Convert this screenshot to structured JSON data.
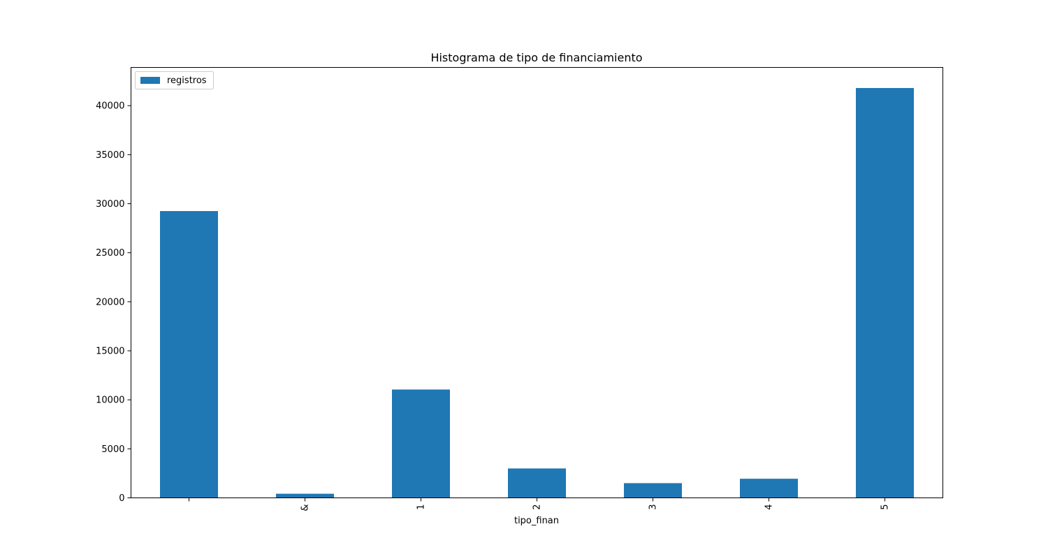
{
  "chart_data": {
    "type": "bar",
    "title": "Histograma de tipo de financiamiento",
    "xlabel": "tipo_finan",
    "ylabel": "",
    "categories": [
      "",
      "&",
      "1",
      "2",
      "3",
      "4",
      "5"
    ],
    "series": [
      {
        "name": "registros",
        "color": "#1f77b4",
        "values": [
          29250,
          420,
          11050,
          3000,
          1500,
          1950,
          41800
        ]
      }
    ],
    "ylim": [
      0,
      43900
    ],
    "yticks": [
      0,
      5000,
      10000,
      15000,
      20000,
      25000,
      30000,
      35000,
      40000
    ],
    "legend_position": "top-left",
    "grid": false
  }
}
